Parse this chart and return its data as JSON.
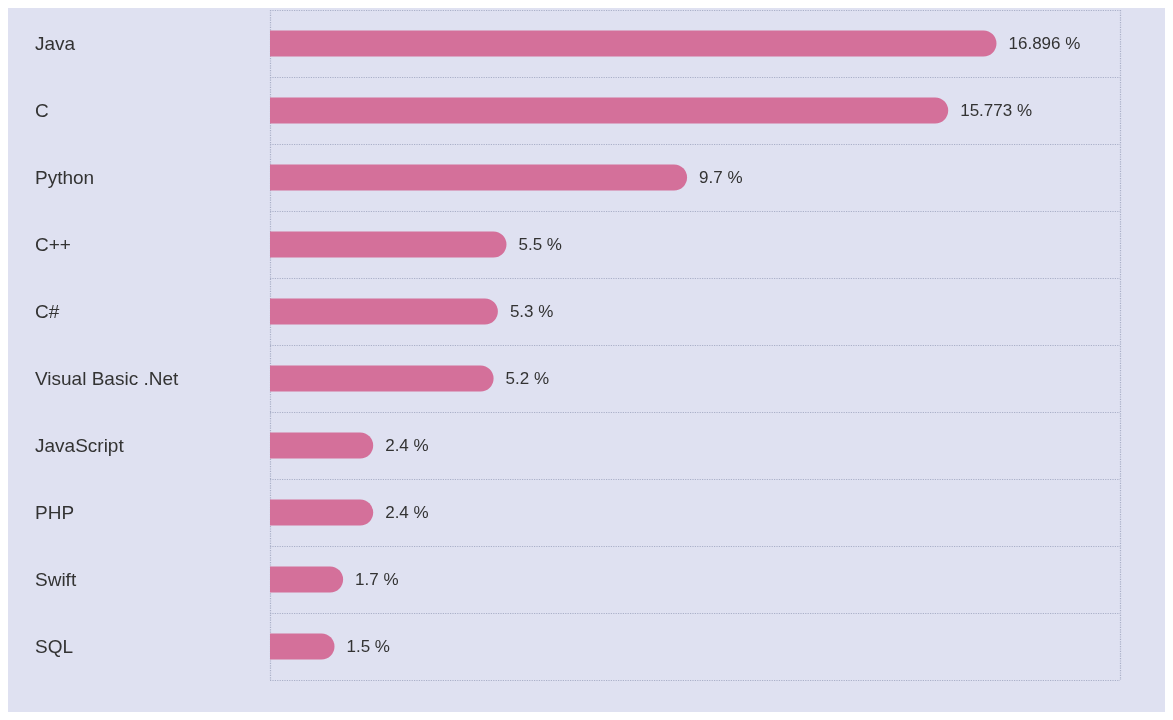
{
  "chart_data": {
    "type": "bar",
    "orientation": "horizontal",
    "categories": [
      "Java",
      "C",
      "Python",
      "C++",
      "C#",
      "Visual Basic .Net",
      "JavaScript",
      "PHP",
      "Swift",
      "SQL"
    ],
    "values": [
      16.896,
      15.773,
      9.7,
      5.5,
      5.3,
      5.2,
      2.4,
      2.4,
      1.7,
      1.5
    ],
    "value_labels": [
      "16.896 %",
      "15.773 %",
      "9.7 %",
      "5.5 %",
      "5.3 %",
      "5.2 %",
      "2.4 %",
      "2.4 %",
      "1.7 %",
      "1.5 %"
    ],
    "color": "#d4709a",
    "grid": true
  }
}
